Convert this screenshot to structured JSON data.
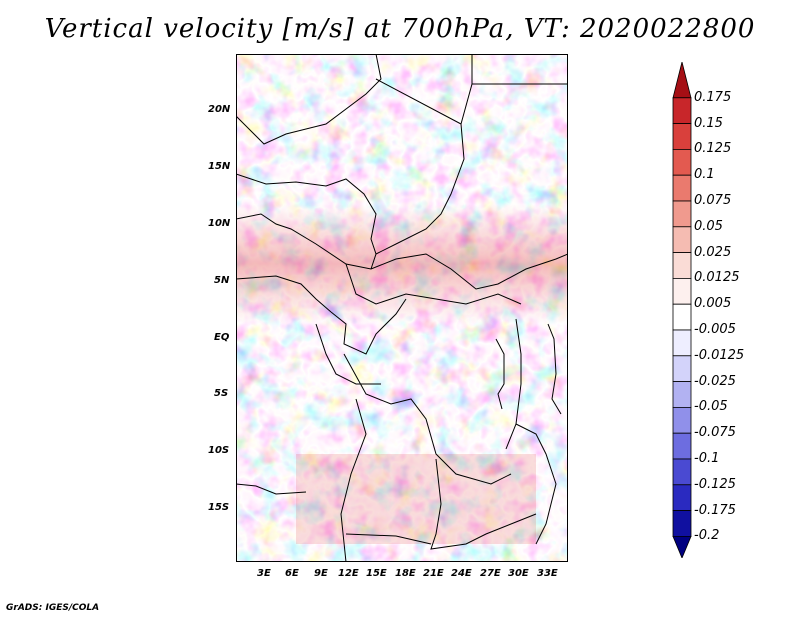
{
  "title": "Vertical velocity [m/s] at 700hPa, VT: 2020022800",
  "credit": "GrADS: IGES/COLA",
  "map": {
    "lat_labels": [
      "20N",
      "15N",
      "10N",
      "5N",
      "EQ",
      "5S",
      "10S",
      "15S"
    ],
    "lon_labels": [
      "3E",
      "6E",
      "9E",
      "12E",
      "15E",
      "18E",
      "21E",
      "24E",
      "27E",
      "30E",
      "33E"
    ]
  },
  "colorbar": {
    "labels": [
      "0.175",
      "0.15",
      "0.125",
      "0.1",
      "0.075",
      "0.05",
      "0.025",
      "0.0125",
      "0.005",
      "-0.005",
      "-0.0125",
      "-0.025",
      "-0.05",
      "-0.075",
      "-0.1",
      "-0.125",
      "-0.175",
      "-0.2"
    ],
    "colors": [
      "#a50f15",
      "#c8262a",
      "#d9403c",
      "#e35a50",
      "#ea7a6e",
      "#f09a8e",
      "#f5bcb2",
      "#fadcd6",
      "#fdf0ee",
      "#ffffff",
      "#eeeeff",
      "#d3d3fa",
      "#b2b2f2",
      "#9090ea",
      "#6d6de0",
      "#4a4ad2",
      "#2a2ac0",
      "#1010a0",
      "#000080"
    ]
  }
}
